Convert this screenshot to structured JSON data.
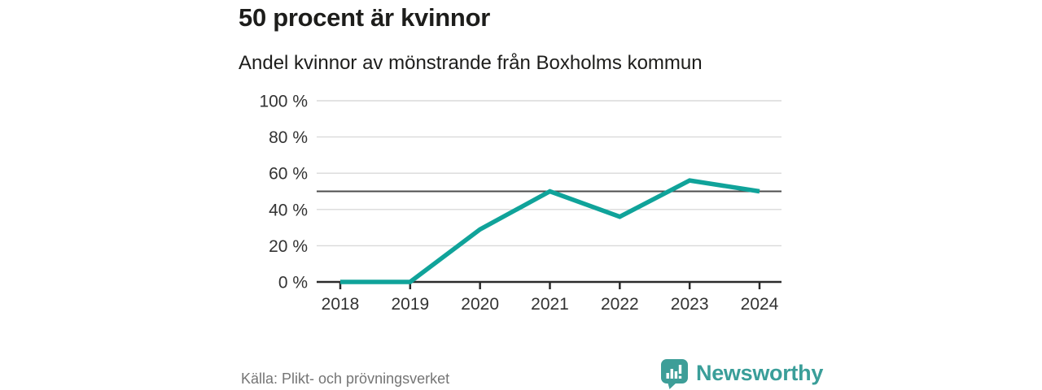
{
  "header": {
    "title": "50 procent är kvinnor",
    "subtitle": "Andel kvinnor av mönstrande från Boxholms kommun"
  },
  "chart_data": {
    "type": "line",
    "title": "50 procent är kvinnor",
    "subtitle": "Andel kvinnor av mönstrande från Boxholms kommun",
    "x": [
      "2018",
      "2019",
      "2020",
      "2021",
      "2022",
      "2023",
      "2024"
    ],
    "series": [
      {
        "name": "Andel kvinnor av mönstrande",
        "values": [
          0,
          0,
          29,
          50,
          36,
          56,
          50
        ]
      }
    ],
    "unit": "%",
    "ylim": [
      0,
      100
    ],
    "yticks": [
      0,
      20,
      40,
      60,
      80,
      100
    ],
    "ytick_suffix": " %",
    "reference_line": 50,
    "grid": "horizontal",
    "legend": "none",
    "colors": {
      "line": "#10a39a",
      "reference_line": "#4d4d4d",
      "gridline": "#dadada",
      "axis": "#2b2b2b",
      "tick_label": "#333333"
    }
  },
  "footer": {
    "source": "Källa: Plikt- och prövningsverket",
    "brand": "Newsworthy"
  },
  "colors": {
    "accent_teal": "#10a39a",
    "brand_teal": "#3d9e98",
    "title_text": "#1d1d1b",
    "muted_text": "#757575"
  },
  "icons": {
    "brand_icon": "speech-bubble-bar-chart-icon"
  }
}
